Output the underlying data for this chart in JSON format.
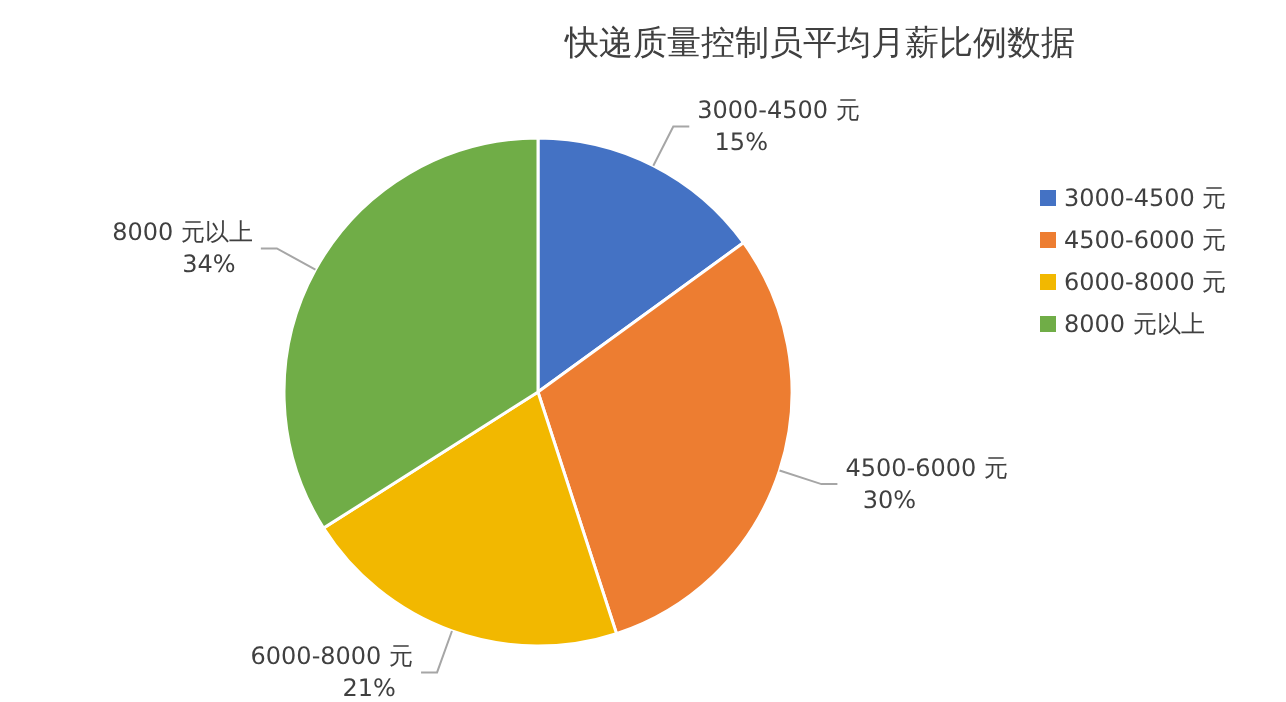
{
  "chart_data": {
    "type": "pie",
    "title": "快递质量控制员平均月薪比例数据",
    "categories": [
      "3000-4500 元",
      "4500-6000 元",
      "6000-8000 元",
      "8000 元以上"
    ],
    "values": [
      15,
      30,
      21,
      34
    ],
    "colors": [
      "#4472c4",
      "#ed7d31",
      "#f2b800",
      "#70ad47"
    ],
    "value_labels": [
      "15%",
      "30%",
      "21%",
      "34%"
    ],
    "legend": "right"
  }
}
